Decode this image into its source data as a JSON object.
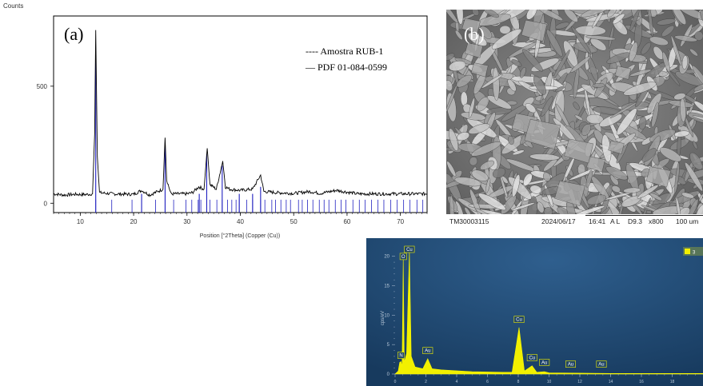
{
  "panel_a": {
    "label": "(a)",
    "y_unit": "Counts",
    "legend": [
      "---- Amostra RUB-1",
      "— PDF 01-084-0599"
    ]
  },
  "panel_b": {
    "label": "(b)",
    "footer": {
      "instrument": "TM30003115",
      "date": "2024/06/17",
      "time": "16:41",
      "mode": "A L",
      "wd": "D9.3",
      "mag": "x800",
      "scale": "100 um"
    }
  },
  "panel_c": {
    "legend_item": "3"
  },
  "chart_data": [
    {
      "type": "line",
      "panel": "a",
      "xlabel": "Position [°2Theta] (Copper (Cu))",
      "ylabel": "Counts",
      "xlim": [
        5,
        75
      ],
      "ylim": [
        -40,
        800
      ],
      "x_ticks": [
        10,
        20,
        30,
        40,
        50,
        60,
        70
      ],
      "y_ticks": [
        0,
        500
      ],
      "series": [
        {
          "name": "Amostra RUB-1",
          "points": [
            [
              5,
              40
            ],
            [
              7,
              35
            ],
            [
              9,
              38
            ],
            [
              11,
              37
            ],
            [
              12.3,
              40
            ],
            [
              12.7,
              300
            ],
            [
              12.9,
              740
            ],
            [
              13.2,
              200
            ],
            [
              13.6,
              45
            ],
            [
              16,
              40
            ],
            [
              20,
              38
            ],
            [
              21.5,
              55
            ],
            [
              23,
              35
            ],
            [
              25.5,
              60
            ],
            [
              25.9,
              280
            ],
            [
              26.2,
              100
            ],
            [
              27,
              40
            ],
            [
              30,
              40
            ],
            [
              31,
              45
            ],
            [
              32.2,
              70
            ],
            [
              33.2,
              60
            ],
            [
              33.8,
              235
            ],
            [
              34.3,
              80
            ],
            [
              35.5,
              60
            ],
            [
              36.7,
              180
            ],
            [
              37.2,
              70
            ],
            [
              38,
              60
            ],
            [
              40,
              55
            ],
            [
              42.3,
              60
            ],
            [
              43.8,
              120
            ],
            [
              44.4,
              50
            ],
            [
              47,
              45
            ],
            [
              50,
              42
            ],
            [
              53,
              50
            ],
            [
              55,
              42
            ],
            [
              58,
              55
            ],
            [
              62,
              40
            ],
            [
              65,
              40
            ],
            [
              70,
              40
            ],
            [
              75,
              40
            ]
          ]
        },
        {
          "name": "PDF 01-084-0599",
          "type": "stick",
          "peaks": [
            [
              12.9,
              620
            ],
            [
              25.9,
              260
            ],
            [
              33.7,
              210
            ],
            [
              36.6,
              160
            ],
            [
              21.5,
              40
            ],
            [
              32.3,
              40
            ],
            [
              43.8,
              70
            ],
            [
              39.8,
              40
            ],
            [
              42.3,
              40
            ]
          ],
          "markers": [
            12.9,
            15.9,
            19.7,
            21.5,
            24.1,
            25.9,
            27.5,
            29.8,
            30.9,
            32.1,
            32.6,
            33.7,
            34.3,
            35.6,
            36.6,
            37.6,
            38.4,
            39.2,
            39.8,
            41.2,
            42.3,
            43.8,
            44.6,
            45.9,
            46.6,
            47.6,
            48.6,
            49.4,
            50.9,
            51.6,
            52.6,
            53.6,
            54.8,
            55.7,
            56.6,
            57.8,
            58.9,
            59.8,
            61.1,
            62.3,
            63.4,
            64.6,
            65.8,
            66.9,
            68.2,
            69.4,
            70.6,
            71.8,
            73.1,
            74.2
          ]
        }
      ]
    },
    {
      "type": "area",
      "panel": "c",
      "xlabel": "",
      "ylabel": "cps/eV",
      "xlim": [
        0,
        20
      ],
      "ylim": [
        0,
        22
      ],
      "x_ticks": [
        0,
        2,
        4,
        6,
        8,
        10,
        12,
        14,
        16,
        18
      ],
      "y_ticks": [
        0,
        5,
        10,
        15,
        20
      ],
      "x_tick_labels": [
        "0",
        "2",
        "4",
        "6",
        "8",
        "10",
        "12",
        "14",
        "16",
        "18"
      ],
      "y_tick_labels": [
        "0",
        "5",
        "10",
        "15",
        "20"
      ],
      "peak_labels": [
        {
          "text": "Cu",
          "x": 0.93,
          "y": 20.5
        },
        {
          "text": "O",
          "x": 0.53,
          "y": 19.3
        },
        {
          "text": "N",
          "x": 0.39,
          "y": 2.5
        },
        {
          "text": "Au",
          "x": 2.12,
          "y": 3.3
        },
        {
          "text": "Cu",
          "x": 8.05,
          "y": 8.6
        },
        {
          "text": "Cu",
          "x": 8.9,
          "y": 2.1
        },
        {
          "text": "Au",
          "x": 9.7,
          "y": 1.3
        },
        {
          "text": "Au",
          "x": 11.4,
          "y": 1.0
        },
        {
          "text": "Au",
          "x": 13.4,
          "y": 1.0
        }
      ],
      "series": [
        {
          "name": "3",
          "points": [
            [
              0,
              0
            ],
            [
              0.2,
              0.5
            ],
            [
              0.3,
              2
            ],
            [
              0.39,
              2.1
            ],
            [
              0.45,
              1.2
            ],
            [
              0.53,
              19.6
            ],
            [
              0.6,
              2
            ],
            [
              0.75,
              3.5
            ],
            [
              0.93,
              20.8
            ],
            [
              1.05,
              3
            ],
            [
              1.3,
              1.2
            ],
            [
              1.8,
              0.9
            ],
            [
              2.12,
              2.6
            ],
            [
              2.4,
              0.9
            ],
            [
              3,
              0.7
            ],
            [
              5,
              0.4
            ],
            [
              7,
              0.3
            ],
            [
              7.6,
              0.3
            ],
            [
              8.05,
              7.9
            ],
            [
              8.4,
              0.5
            ],
            [
              8.9,
              1.4
            ],
            [
              9.2,
              0.3
            ],
            [
              9.7,
              0.4
            ],
            [
              10,
              0.2
            ],
            [
              12,
              0.15
            ],
            [
              14,
              0.1
            ],
            [
              16,
              0.1
            ],
            [
              18,
              0.1
            ],
            [
              20,
              0.1
            ]
          ]
        }
      ]
    }
  ]
}
